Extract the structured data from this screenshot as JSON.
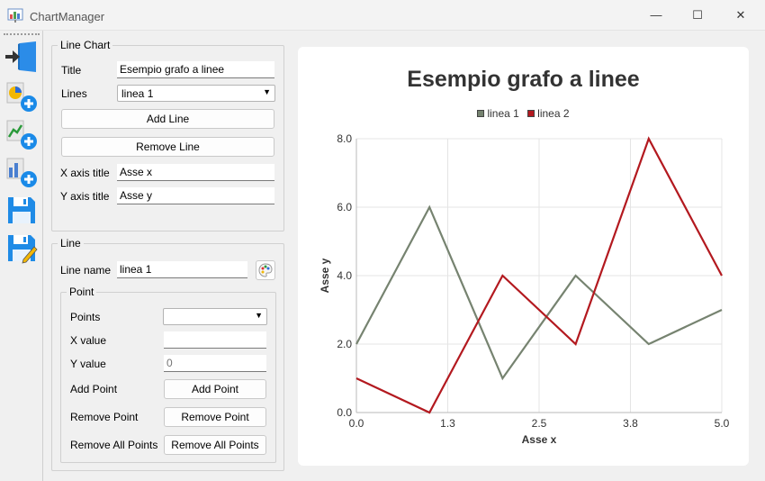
{
  "window": {
    "title": "ChartManager",
    "controls": {
      "minimize": "—",
      "maximize": "☐",
      "close": "✕"
    }
  },
  "toolbar": {
    "items": [
      "import-icon",
      "add-pie-chart-icon",
      "add-line-chart-icon",
      "add-bar-chart-icon",
      "save-icon",
      "save-as-icon"
    ]
  },
  "line_chart_group": {
    "title": "Line Chart",
    "title_label": "Title",
    "title_value": "Esempio grafo a linee",
    "lines_label": "Lines",
    "lines_selected": "linea 1",
    "add_line_label": "Add Line",
    "remove_line_label": "Remove Line",
    "x_axis_label": "X axis title",
    "x_axis_value": "Asse x",
    "y_axis_label": "Y axis title",
    "y_axis_value": "Asse y"
  },
  "line_group": {
    "title": "Line",
    "line_name_label": "Line name",
    "line_name_value": "linea 1",
    "point_group": {
      "title": "Point",
      "points_label": "Points",
      "points_selected": "",
      "x_value_label": "X value",
      "x_value": "",
      "y_value_label": "Y value",
      "y_value_placeholder": "0",
      "add_point_label": "Add Point",
      "add_point_button": "Add Point",
      "remove_point_label": "Remove Point",
      "remove_point_button": "Remove Point",
      "remove_all_label": "Remove All Points",
      "remove_all_button": "Remove All Points"
    }
  },
  "colors": {
    "series1": "#768370",
    "series2": "#b3191f",
    "grid": "#e4e4e4",
    "axis": "#333333"
  },
  "chart_data": {
    "type": "line",
    "title": "Esempio grafo a linee",
    "xlabel": "Asse x",
    "ylabel": "Asse y",
    "xlim": [
      0,
      5
    ],
    "ylim": [
      0,
      8
    ],
    "xticks": [
      "0.0",
      "1.3",
      "2.5",
      "3.8",
      "5.0"
    ],
    "yticks": [
      "0.0",
      "2.0",
      "4.0",
      "6.0",
      "8.0"
    ],
    "grid": true,
    "legend_position": "top",
    "series": [
      {
        "name": "linea 1",
        "x": [
          0,
          1,
          2,
          3,
          4,
          5
        ],
        "y": [
          2,
          6,
          1,
          4,
          2,
          3
        ]
      },
      {
        "name": "linea 2",
        "x": [
          0,
          1,
          2,
          3,
          4,
          5
        ],
        "y": [
          1,
          0,
          4,
          2,
          8,
          4
        ]
      }
    ]
  }
}
